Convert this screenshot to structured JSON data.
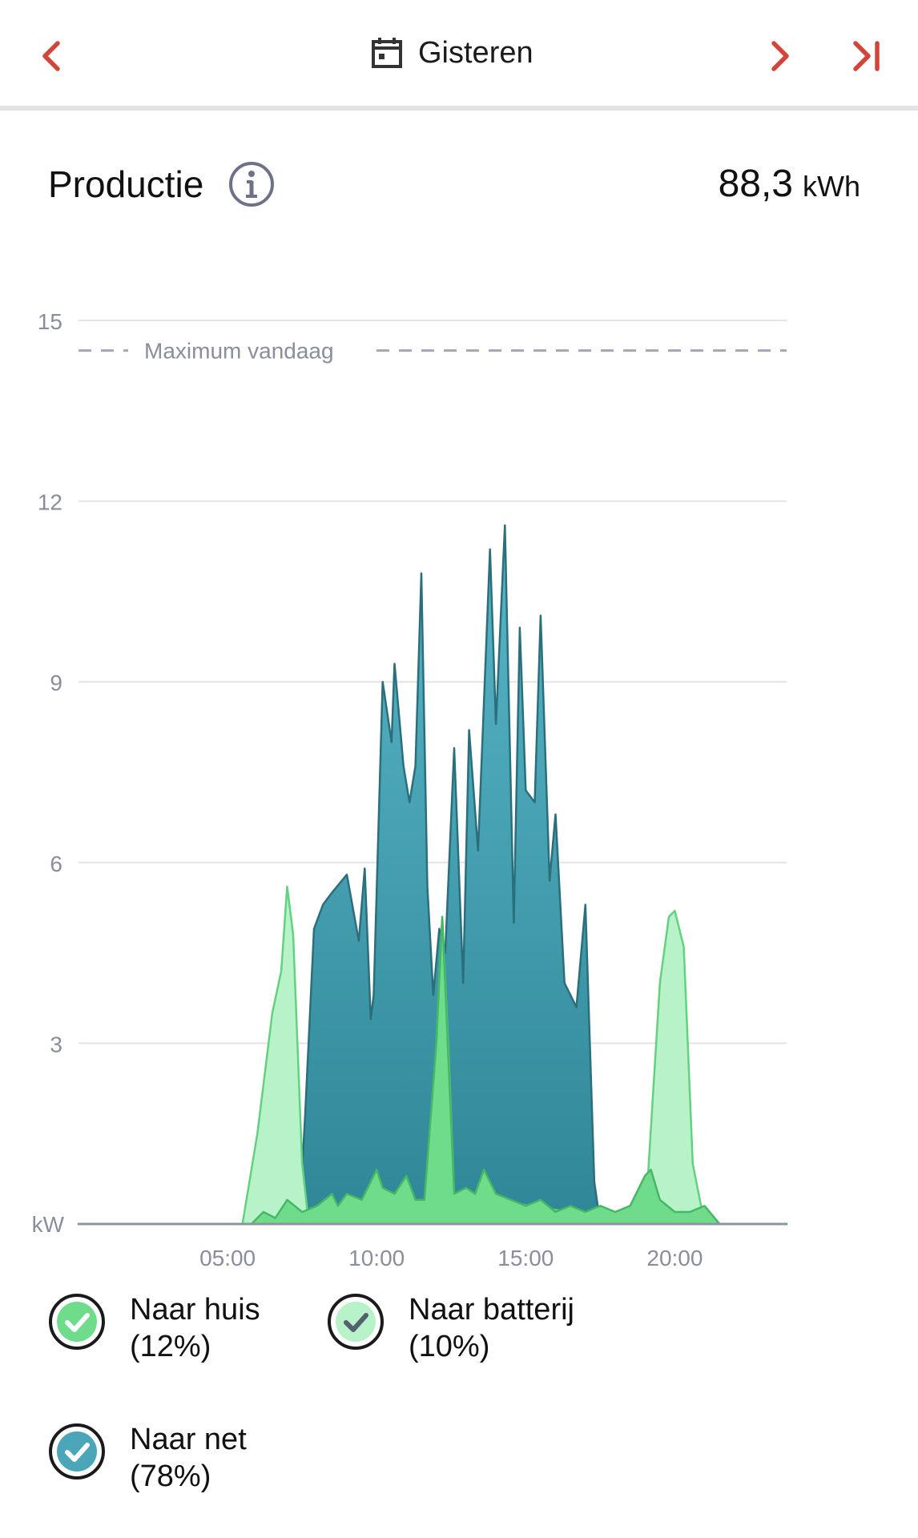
{
  "header": {
    "date_label": "Gisteren",
    "accent_color": "#d2453a"
  },
  "section": {
    "title": "Productie",
    "total_value": "88,3",
    "total_unit": "kWh"
  },
  "chart_data": {
    "type": "area",
    "x_unit": "hours",
    "xlim": [
      0,
      23.75
    ],
    "ylim": [
      0,
      15
    ],
    "y_ticks": [
      15,
      12,
      9,
      6,
      3
    ],
    "y_unit_label": "kW",
    "x_tick_labels": [
      "05:00",
      "10:00",
      "15:00",
      "20:00"
    ],
    "x_tick_values": [
      5,
      10,
      15,
      20
    ],
    "grid": true,
    "reference_line": {
      "label": "Maximum vandaag",
      "value": 14.5
    },
    "series": [
      {
        "name": "Naar net",
        "color": "#4aa6b8",
        "x": [
          0,
          7.4,
          7.6,
          7.9,
          8.2,
          8.5,
          9.0,
          9.4,
          9.6,
          9.8,
          9.9,
          10.2,
          10.5,
          10.6,
          10.9,
          11.1,
          11.3,
          11.5,
          11.7,
          11.9,
          12.1,
          12.3,
          12.6,
          12.9,
          13.1,
          13.4,
          13.8,
          14.0,
          14.3,
          14.6,
          14.8,
          15.0,
          15.3,
          15.5,
          15.8,
          16.0,
          16.3,
          16.7,
          17.0,
          17.3,
          17.5,
          17.8,
          18.1,
          18.4,
          18.8,
          19.1,
          19.4,
          19.8,
          20.2,
          20.6,
          21.0,
          21.4,
          23.75
        ],
        "values": [
          0,
          0,
          1.8,
          4.9,
          5.3,
          5.5,
          5.8,
          4.7,
          5.9,
          3.4,
          3.8,
          9.0,
          8.0,
          9.3,
          7.6,
          7.0,
          7.6,
          10.8,
          5.6,
          3.8,
          4.9,
          4.5,
          7.9,
          4.0,
          8.2,
          6.2,
          11.2,
          8.3,
          11.6,
          5.0,
          9.9,
          7.2,
          7.0,
          10.1,
          5.7,
          6.8,
          4.0,
          3.6,
          5.3,
          0.7,
          0,
          0,
          0,
          0,
          0,
          0,
          0,
          0,
          0,
          0,
          0,
          0,
          0
        ]
      },
      {
        "name": "Naar batterij",
        "color": "#b8f2c8",
        "x": [
          0,
          5.5,
          6.0,
          6.5,
          6.8,
          7.0,
          7.2,
          7.5,
          7.7,
          8.0,
          11.7,
          12.0,
          12.2,
          12.4,
          12.6,
          19.0,
          19.5,
          19.8,
          20.0,
          20.3,
          20.6,
          21.0,
          23.75
        ],
        "values": [
          0,
          0,
          1.5,
          3.5,
          4.2,
          5.6,
          4.8,
          1.0,
          0.1,
          0,
          0,
          3.0,
          5.1,
          3.0,
          0.5,
          0,
          4.0,
          5.1,
          5.2,
          4.6,
          1.0,
          0,
          0
        ]
      },
      {
        "name": "Naar huis",
        "color": "#6fdc8c",
        "x": [
          0,
          5.8,
          6.2,
          6.6,
          7.0,
          7.5,
          8.0,
          8.5,
          8.7,
          9.0,
          9.5,
          10.0,
          10.2,
          10.6,
          11.0,
          11.3,
          11.6,
          12.0,
          12.2,
          12.6,
          13.0,
          13.3,
          13.6,
          14.0,
          14.5,
          15.0,
          15.5,
          16.0,
          16.5,
          17.0,
          17.5,
          18.0,
          18.5,
          19.0,
          19.2,
          19.5,
          20.0,
          20.5,
          21.0,
          21.5,
          23.75
        ],
        "values": [
          0,
          0,
          0.2,
          0.1,
          0.4,
          0.2,
          0.3,
          0.5,
          0.3,
          0.5,
          0.4,
          0.9,
          0.6,
          0.5,
          0.8,
          0.4,
          0.4,
          3.0,
          5.1,
          0.5,
          0.6,
          0.5,
          0.9,
          0.5,
          0.4,
          0.3,
          0.4,
          0.2,
          0.3,
          0.2,
          0.3,
          0.2,
          0.3,
          0.8,
          0.9,
          0.4,
          0.2,
          0.2,
          0.3,
          0.0,
          0
        ]
      }
    ]
  },
  "legend": [
    {
      "name": "Naar huis",
      "percent": "(12%)",
      "color": "#6fdc8c"
    },
    {
      "name": "Naar batterij",
      "percent": "(10%)",
      "color": "#b8f2c8"
    },
    {
      "name": "Naar net",
      "percent": "(78%)",
      "color": "#4aa6b8"
    }
  ]
}
